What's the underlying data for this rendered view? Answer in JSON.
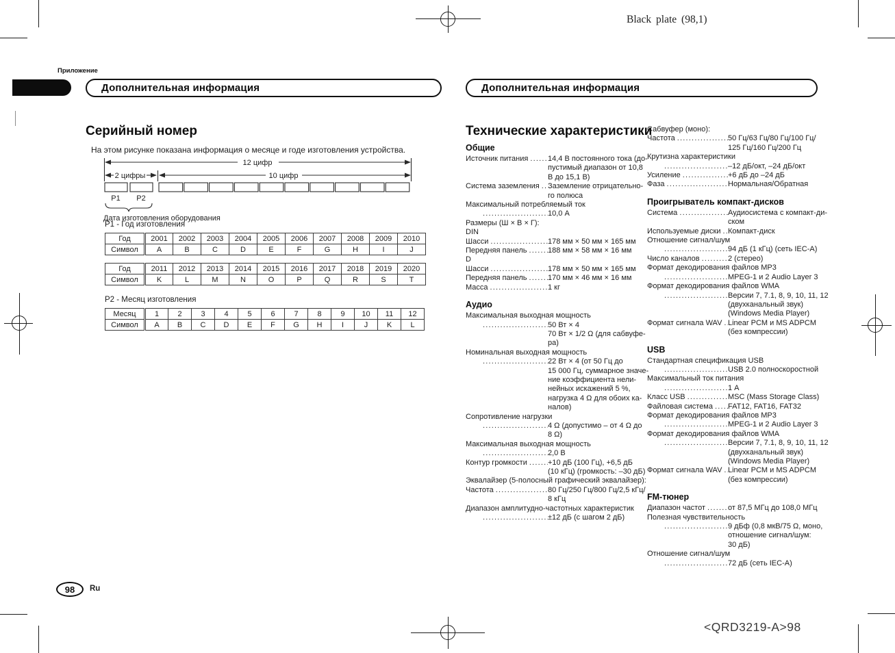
{
  "meta": {
    "plate_note": "Black plate (98,1)",
    "plate_code": "<QRD3219-A>98"
  },
  "header": {
    "appendix_label": "Приложение",
    "banner_left": "Дополнительная информация",
    "banner_right": "Дополнительная информация"
  },
  "serial": {
    "title": "Серийный номер",
    "intro": "На этом рисунке показана информация о месяце и годе изготовления устройства.",
    "diagram": {
      "total_label": "12 цифр",
      "left_label": "2 цифры",
      "right_label": "10 цифр",
      "p1": "P1",
      "p2": "P2",
      "date_label": "Дата изготовления оборудования"
    },
    "p1_title": "P1 - Год изготовления",
    "p2_title": "P2 - Месяц изготовления",
    "tables": {
      "year1": {
        "row1_label": "Год",
        "row2_label": "Символ",
        "row1": [
          "2001",
          "2002",
          "2003",
          "2004",
          "2005",
          "2006",
          "2007",
          "2008",
          "2009",
          "2010"
        ],
        "row2": [
          "A",
          "B",
          "C",
          "D",
          "E",
          "F",
          "G",
          "H",
          "I",
          "J"
        ]
      },
      "year2": {
        "row1_label": "Год",
        "row2_label": "Символ",
        "row1": [
          "2011",
          "2012",
          "2013",
          "2014",
          "2015",
          "2016",
          "2017",
          "2018",
          "2019",
          "2020"
        ],
        "row2": [
          "K",
          "L",
          "M",
          "N",
          "O",
          "P",
          "Q",
          "R",
          "S",
          "T"
        ]
      },
      "month": {
        "row1_label": "Месяц",
        "row2_label": "Символ",
        "row1": [
          "1",
          "2",
          "3",
          "4",
          "5",
          "6",
          "7",
          "8",
          "9",
          "10",
          "11",
          "12"
        ],
        "row2": [
          "A",
          "B",
          "C",
          "D",
          "E",
          "F",
          "G",
          "H",
          "I",
          "J",
          "K",
          "L"
        ]
      }
    }
  },
  "specs": {
    "title": "Технические характеристики",
    "col1": [
      {
        "heading": "Общие",
        "items": [
          {
            "type": "spec",
            "label": "Источник питания",
            "value": "14,4 В постоянного тока (до-\nпустимый диапазон от 10,8\nВ до 15,1 В)"
          },
          {
            "type": "spec",
            "label": "Система заземления",
            "value": "Заземление отрицательно-\nго полюса"
          },
          {
            "type": "specline",
            "label": "Максимальный потребляемый ток",
            "value": "10,0 А"
          },
          {
            "type": "plain",
            "label": "Размеры (Ш × В × Г):"
          },
          {
            "type": "plain",
            "label": "DIN"
          },
          {
            "type": "spec",
            "label": "Шасси",
            "value": "178 мм × 50 мм × 165 мм"
          },
          {
            "type": "spec",
            "label": "Передняя панель",
            "value": "188 мм × 58 мм × 16 мм"
          },
          {
            "type": "plain",
            "label": "D"
          },
          {
            "type": "spec",
            "label": "Шасси",
            "value": "178 мм × 50 мм × 165 мм"
          },
          {
            "type": "spec",
            "label": "Передняя панель",
            "value": "170 мм × 46 мм × 16 мм"
          },
          {
            "type": "spec",
            "label": "Масса",
            "value": "1 кг"
          }
        ]
      },
      {
        "heading": "Аудио",
        "items": [
          {
            "type": "specline",
            "label": "Максимальная выходная мощность",
            "value": "50 Вт × 4\n70 Вт × 1/2 Ω (для сабвуфе-\nра)"
          },
          {
            "type": "specline",
            "label": "Номинальная выходная мощность",
            "value": "22 Вт × 4 (от 50 Гц до\n15 000 Гц, суммарное значе-\nние коэффициента нели-\nнейных искажений 5 %,\nнагрузка 4 Ω для обоих ка-\nналов)"
          },
          {
            "type": "specline",
            "label": "Сопротивление нагрузки",
            "value": "4 Ω (допустимо – от 4 Ω до\n8 Ω)"
          },
          {
            "type": "specline",
            "label": "Максимальная выходная мощность",
            "value": "2,0 В"
          },
          {
            "type": "spec",
            "label": "Контур громкости",
            "value": "+10 дБ (100 Гц), +6,5 дБ\n(10 кГц) (громкость: –30 дБ)"
          },
          {
            "type": "plain",
            "label": "Эквалайзер (5-полосный графический эквалайзер):"
          },
          {
            "type": "spec",
            "label": "Частота",
            "value": "80 Гц/250 Гц/800 Гц/2,5 кГц/\n8 кГц"
          },
          {
            "type": "specline",
            "label": "Диапазон амплитудно-частотных характеристик",
            "value": "±12 дБ (с шагом 2 дБ)"
          }
        ]
      }
    ],
    "col2": [
      {
        "heading": "",
        "items": [
          {
            "type": "plain",
            "label": "Сабвуфер (моно):"
          },
          {
            "type": "spec",
            "label": "Частота",
            "value": "50 Гц/63 Гц/80 Гц/100 Гц/\n125 Гц/160 Гц/200 Гц"
          },
          {
            "type": "specline",
            "label": "Крутизна характеристики",
            "value": "–12 дБ/окт, –24 дБ/окт"
          },
          {
            "type": "spec",
            "label": "Усиление",
            "value": "+6 дБ до –24 дБ"
          },
          {
            "type": "spec",
            "label": "Фаза",
            "value": "Нормальная/Обратная"
          }
        ]
      },
      {
        "heading": "Проигрыватель компакт-дисков",
        "items": [
          {
            "type": "spec",
            "label": "Система",
            "value": "Аудиосистема с компакт-ди-\nском"
          },
          {
            "type": "spec",
            "label": "Используемые диски",
            "value": "Компакт-диск"
          },
          {
            "type": "specline",
            "label": "Отношение сигнал/шум",
            "value": "94 дБ (1 кГц) (сеть IEC-A)"
          },
          {
            "type": "spec",
            "label": "Число каналов",
            "value": "2 (стерео)"
          },
          {
            "type": "specline",
            "label": "Формат декодирования файлов MP3",
            "value": "MPEG-1 и 2 Audio Layer 3"
          },
          {
            "type": "specline",
            "label": "Формат декодирования файлов WMA",
            "value": "Версии 7, 7.1, 8, 9, 10, 11, 12\n(двухканальный звук)\n(Windows Media Player)"
          },
          {
            "type": "spec",
            "label": "Формат сигнала WAV",
            "value": "Linear PCM и MS ADPCM\n(без компрессии)"
          }
        ]
      },
      {
        "heading": "USB",
        "items": [
          {
            "type": "specline",
            "label": "Стандартная спецификация USB",
            "value": "USB 2.0 полноскоростной"
          },
          {
            "type": "specline",
            "label": "Максимальный ток питания",
            "value": "1 А"
          },
          {
            "type": "spec",
            "label": "Класс USB",
            "value": "MSC (Mass Storage Class)"
          },
          {
            "type": "spec",
            "label": "Файловая система",
            "value": "FAT12, FAT16, FAT32"
          },
          {
            "type": "specline",
            "label": "Формат декодирования файлов MP3",
            "value": "MPEG-1 и 2 Audio Layer 3"
          },
          {
            "type": "specline",
            "label": "Формат декодирования файлов WMA",
            "value": "Версии 7, 7.1, 8, 9, 10, 11, 12\n(двухканальный звук)\n(Windows Media Player)"
          },
          {
            "type": "spec",
            "label": "Формат сигнала WAV",
            "value": "Linear PCM и MS ADPCM\n(без компрессии)"
          }
        ]
      },
      {
        "heading": "FM-тюнер",
        "items": [
          {
            "type": "spec",
            "label": "Диапазон частот",
            "value": "от 87,5 МГц до 108,0 МГц"
          },
          {
            "type": "specline",
            "label": "Полезная чувствительность",
            "value": "9 дБф (0,8 мкВ/75 Ω, моно,\nотношение сигнал/шум:\n30 дБ)"
          },
          {
            "type": "specline",
            "label": "Отношение сигнал/шум",
            "value": "72 дБ (сеть IEC-A)"
          }
        ]
      }
    ]
  },
  "footer": {
    "page_number": "98",
    "language": "Ru"
  }
}
